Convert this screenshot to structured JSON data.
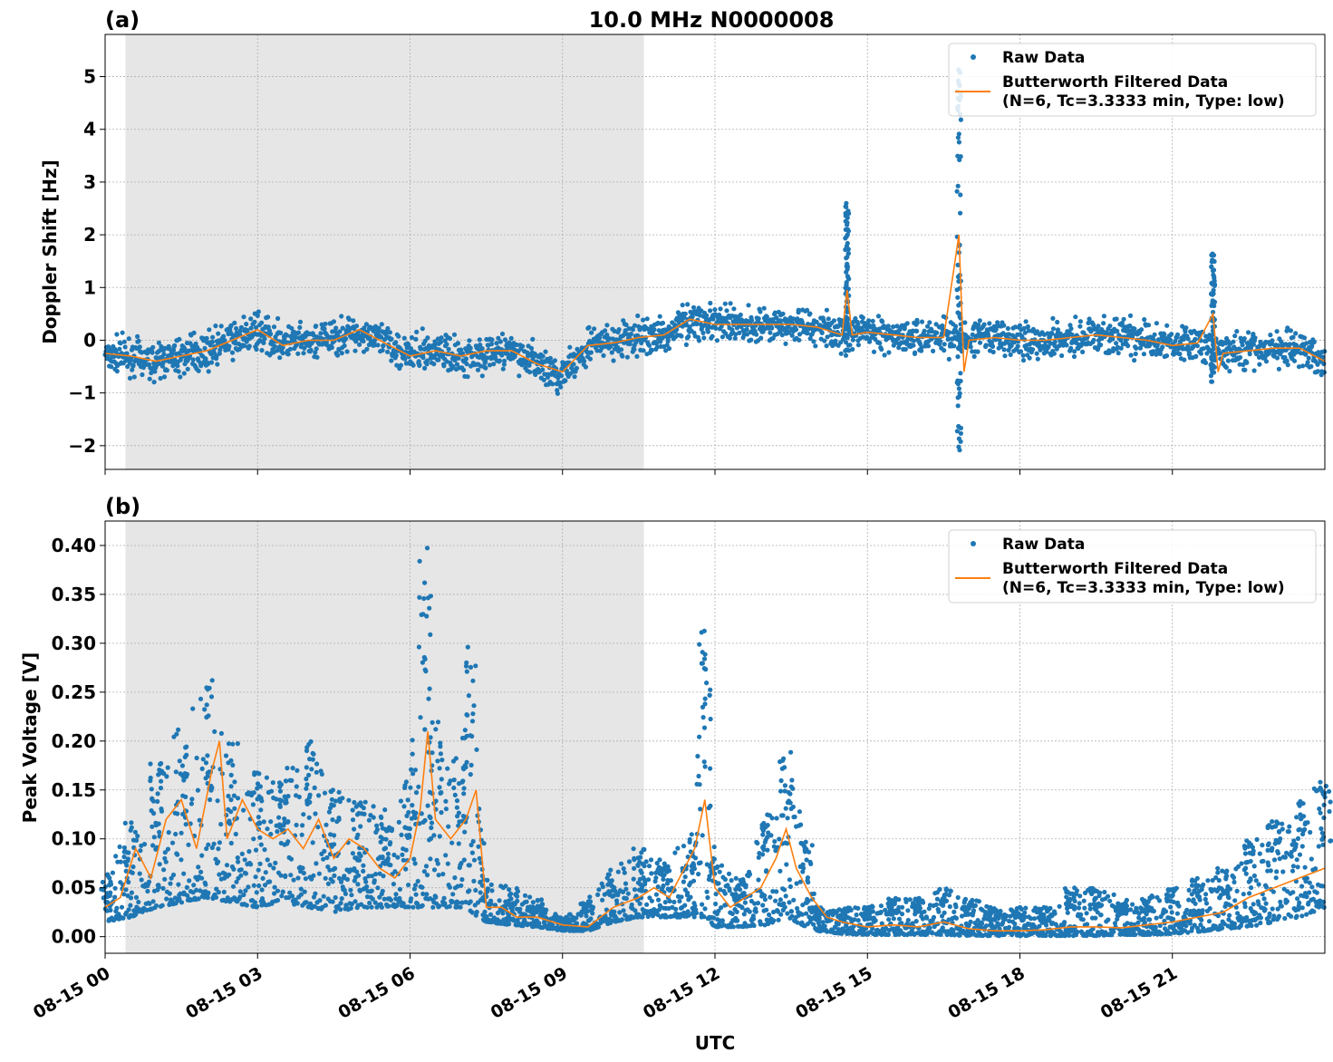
{
  "figure": {
    "title": "10.0 MHz N0000008",
    "xlabel": "UTC",
    "colors": {
      "raw": "#1f77b4",
      "filtered": "#ff7f0e",
      "night_shade": "#e6e6e6",
      "grid": "#b0b0b0"
    }
  },
  "chart_data": [
    {
      "type": "scatter",
      "panel_label": "(a)",
      "title": "10.0 MHz N0000008",
      "xlabel": "",
      "ylabel": "Doppler Shift [Hz]",
      "xlim_hours_utc": [
        0,
        24
      ],
      "ylim": [
        -2.45,
        5.8
      ],
      "yticks": [
        -2,
        -1,
        0,
        1,
        2,
        3,
        4,
        5
      ],
      "ytick_labels": [
        "−2",
        "−1",
        "0",
        "1",
        "2",
        "3",
        "4",
        "5"
      ],
      "shaded_interval_hours_utc": [
        0.4,
        10.6
      ],
      "grid": true,
      "legend": {
        "placement": "top-right",
        "entries": [
          "Raw Data",
          "Butterworth Filtered Data\n(N=6, Tc=3.3333 min, Type: low)"
        ]
      },
      "series": [
        {
          "name": "Raw Data",
          "style": "dots",
          "hour_utc": [
            0.0,
            0.5,
            1.0,
            1.5,
            2.0,
            2.5,
            3.0,
            3.5,
            4.0,
            4.5,
            5.0,
            5.5,
            6.0,
            6.5,
            7.0,
            7.5,
            8.0,
            8.5,
            9.0,
            9.5,
            10.0,
            10.5,
            11.0,
            11.5,
            12.0,
            12.5,
            13.0,
            13.5,
            14.0,
            14.5,
            15.0,
            15.5,
            16.0,
            16.5,
            17.0,
            17.5,
            18.0,
            18.5,
            19.0,
            19.5,
            20.0,
            20.5,
            21.0,
            21.5,
            22.0,
            22.5,
            23.0,
            23.5,
            24.0
          ],
          "center_hz": [
            -0.25,
            -0.3,
            -0.4,
            -0.3,
            -0.2,
            0.0,
            0.15,
            -0.05,
            -0.05,
            0.05,
            0.15,
            -0.05,
            -0.25,
            -0.2,
            -0.3,
            -0.25,
            -0.2,
            -0.45,
            -0.7,
            -0.1,
            -0.05,
            0.05,
            0.1,
            0.4,
            0.3,
            0.3,
            0.3,
            0.3,
            0.25,
            0.15,
            0.15,
            0.1,
            0.05,
            0.1,
            0.0,
            0.05,
            0.0,
            0.0,
            0.05,
            0.1,
            0.05,
            0.0,
            -0.1,
            -0.05,
            -0.25,
            -0.2,
            -0.15,
            -0.15,
            -0.4
          ],
          "spread_hz": 0.25,
          "spikes": [
            {
              "hour_utc": 14.6,
              "min": -0.3,
              "max": 2.6
            },
            {
              "hour_utc": 16.8,
              "min": -2.1,
              "max": 5.4
            },
            {
              "hour_utc": 21.8,
              "min": -0.8,
              "max": 1.65
            }
          ]
        },
        {
          "name": "Butterworth Filtered Data\n(N=6, Tc=3.3333 min, Type: low)",
          "style": "line",
          "hour_utc": [
            0.0,
            0.5,
            1.0,
            1.5,
            2.0,
            2.5,
            3.0,
            3.5,
            4.0,
            4.5,
            5.0,
            5.5,
            6.0,
            6.5,
            7.0,
            7.5,
            8.0,
            8.5,
            9.0,
            9.5,
            10.0,
            10.5,
            11.0,
            11.5,
            12.0,
            12.5,
            13.0,
            13.5,
            14.0,
            14.5,
            14.6,
            14.7,
            15.0,
            15.5,
            16.0,
            16.5,
            16.8,
            16.9,
            17.0,
            17.5,
            18.0,
            18.5,
            19.0,
            19.5,
            20.0,
            20.5,
            21.0,
            21.5,
            21.8,
            21.9,
            22.0,
            22.5,
            23.0,
            23.5,
            24.0
          ],
          "doppler_hz": [
            -0.25,
            -0.3,
            -0.4,
            -0.3,
            -0.2,
            0.0,
            0.2,
            -0.1,
            0.0,
            0.0,
            0.2,
            -0.05,
            -0.3,
            -0.2,
            -0.3,
            -0.2,
            -0.2,
            -0.45,
            -0.6,
            -0.1,
            -0.05,
            0.05,
            0.1,
            0.4,
            0.3,
            0.3,
            0.3,
            0.3,
            0.25,
            0.1,
            0.95,
            0.1,
            0.15,
            0.1,
            0.05,
            0.05,
            2.0,
            -0.6,
            0.0,
            0.05,
            0.0,
            0.0,
            0.05,
            0.1,
            0.05,
            0.0,
            -0.1,
            -0.05,
            0.5,
            -0.6,
            -0.25,
            -0.2,
            -0.15,
            -0.15,
            -0.4
          ]
        }
      ]
    },
    {
      "type": "scatter",
      "panel_label": "(b)",
      "xlabel": "UTC",
      "ylabel": "Peak Voltage [V]",
      "xlim_hours_utc": [
        0,
        24
      ],
      "ylim": [
        -0.017,
        0.425
      ],
      "yticks": [
        0.0,
        0.05,
        0.1,
        0.15,
        0.2,
        0.25,
        0.3,
        0.35,
        0.4
      ],
      "ytick_labels": [
        "0.00",
        "0.05",
        "0.10",
        "0.15",
        "0.20",
        "0.25",
        "0.30",
        "0.35",
        "0.40"
      ],
      "xticks_hours_utc": [
        0,
        3,
        6,
        9,
        12,
        15,
        18,
        21
      ],
      "xtick_labels": [
        "08-15 00",
        "08-15 03",
        "08-15 06",
        "08-15 09",
        "08-15 12",
        "08-15 15",
        "08-15 18",
        "08-15 21"
      ],
      "shaded_interval_hours_utc": [
        0.4,
        10.6
      ],
      "grid": true,
      "legend": {
        "placement": "top-right",
        "entries": [
          "Raw Data",
          "Butterworth Filtered Data\n(N=6, Tc=3.3333 min, Type: low)"
        ]
      },
      "series": [
        {
          "name": "Raw Data",
          "style": "dots",
          "hour_utc": [
            0.0,
            0.5,
            1.0,
            1.5,
            2.0,
            2.5,
            3.0,
            3.5,
            4.0,
            4.5,
            5.0,
            5.5,
            6.0,
            6.3,
            6.5,
            7.0,
            7.2,
            7.5,
            8.0,
            8.5,
            9.0,
            9.5,
            10.0,
            10.5,
            11.0,
            11.5,
            11.8,
            12.0,
            12.5,
            13.0,
            13.4,
            13.8,
            14.0,
            14.5,
            15.0,
            15.5,
            16.0,
            16.5,
            17.0,
            17.5,
            18.0,
            18.5,
            19.0,
            19.5,
            20.0,
            20.5,
            21.0,
            21.5,
            22.0,
            22.5,
            23.0,
            23.5,
            24.0
          ],
          "low_v": [
            0.015,
            0.02,
            0.03,
            0.035,
            0.04,
            0.035,
            0.03,
            0.035,
            0.03,
            0.025,
            0.03,
            0.03,
            0.03,
            0.03,
            0.03,
            0.03,
            0.025,
            0.015,
            0.012,
            0.01,
            0.006,
            0.006,
            0.015,
            0.02,
            0.02,
            0.02,
            0.02,
            0.01,
            0.01,
            0.012,
            0.02,
            0.01,
            0.006,
            0.003,
            0.002,
            0.002,
            0.002,
            0.002,
            0.001,
            0.001,
            0.001,
            0.001,
            0.001,
            0.001,
            0.002,
            0.002,
            0.003,
            0.005,
            0.008,
            0.01,
            0.015,
            0.02,
            0.03
          ],
          "high_v": [
            0.06,
            0.12,
            0.18,
            0.22,
            0.27,
            0.2,
            0.17,
            0.17,
            0.2,
            0.15,
            0.14,
            0.13,
            0.18,
            0.4,
            0.22,
            0.2,
            0.3,
            0.06,
            0.05,
            0.04,
            0.02,
            0.04,
            0.07,
            0.09,
            0.08,
            0.1,
            0.32,
            0.08,
            0.06,
            0.12,
            0.19,
            0.1,
            0.03,
            0.03,
            0.03,
            0.04,
            0.04,
            0.05,
            0.04,
            0.03,
            0.03,
            0.03,
            0.05,
            0.05,
            0.04,
            0.04,
            0.05,
            0.06,
            0.07,
            0.1,
            0.12,
            0.14,
            0.16
          ]
        },
        {
          "name": "Butterworth Filtered Data\n(N=6, Tc=3.3333 min, Type: low)",
          "style": "line",
          "hour_utc": [
            0.0,
            0.3,
            0.6,
            0.9,
            1.2,
            1.5,
            1.8,
            2.1,
            2.25,
            2.4,
            2.7,
            3.0,
            3.3,
            3.6,
            3.9,
            4.2,
            4.5,
            4.8,
            5.1,
            5.4,
            5.7,
            6.0,
            6.2,
            6.35,
            6.5,
            6.8,
            7.1,
            7.3,
            7.5,
            7.8,
            8.1,
            8.5,
            9.0,
            9.5,
            10.0,
            10.5,
            10.8,
            11.1,
            11.4,
            11.6,
            11.8,
            12.0,
            12.3,
            12.6,
            12.9,
            13.2,
            13.4,
            13.6,
            13.9,
            14.2,
            14.5,
            15.0,
            15.5,
            16.0,
            16.5,
            17.0,
            17.5,
            18.0,
            18.5,
            19.0,
            19.5,
            20.0,
            20.5,
            21.0,
            21.5,
            22.0,
            22.5,
            23.0,
            23.5,
            24.0
          ],
          "voltage_v": [
            0.03,
            0.04,
            0.09,
            0.06,
            0.12,
            0.14,
            0.09,
            0.17,
            0.2,
            0.1,
            0.14,
            0.11,
            0.1,
            0.11,
            0.09,
            0.12,
            0.08,
            0.1,
            0.09,
            0.07,
            0.06,
            0.08,
            0.13,
            0.21,
            0.12,
            0.1,
            0.12,
            0.15,
            0.03,
            0.03,
            0.02,
            0.02,
            0.012,
            0.01,
            0.03,
            0.04,
            0.05,
            0.04,
            0.07,
            0.09,
            0.14,
            0.05,
            0.03,
            0.04,
            0.05,
            0.08,
            0.11,
            0.07,
            0.04,
            0.02,
            0.015,
            0.01,
            0.012,
            0.01,
            0.015,
            0.008,
            0.006,
            0.006,
            0.007,
            0.01,
            0.01,
            0.009,
            0.012,
            0.015,
            0.02,
            0.025,
            0.04,
            0.05,
            0.06,
            0.07
          ]
        }
      ]
    }
  ]
}
